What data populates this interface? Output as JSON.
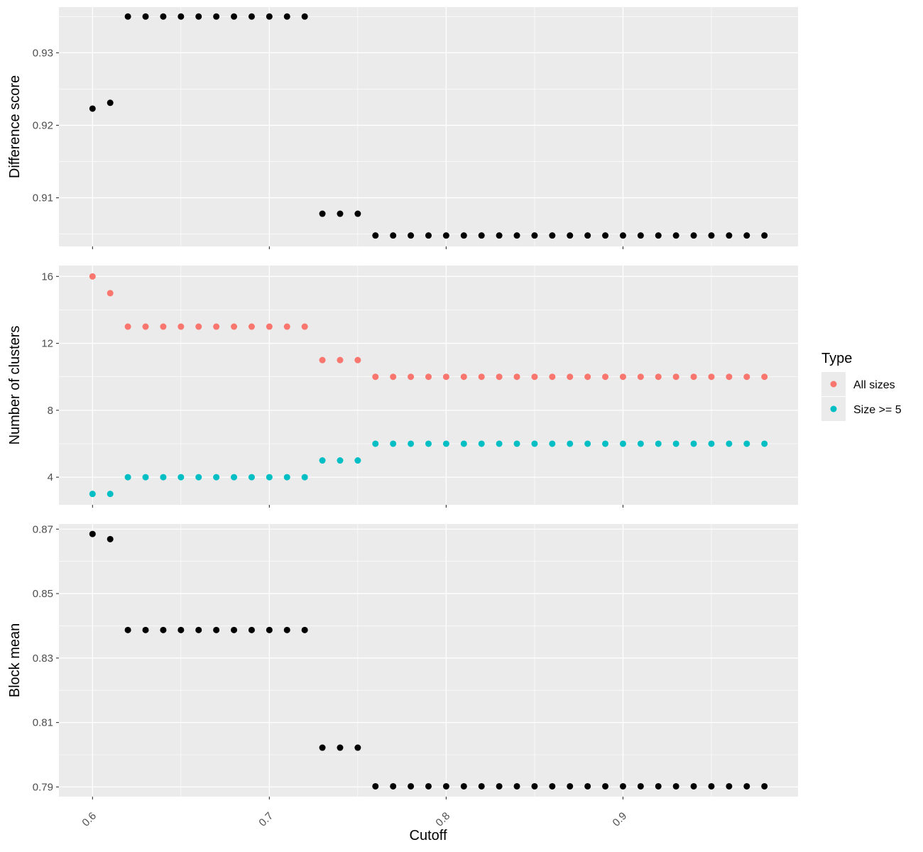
{
  "chart_data": {
    "type": "scatter",
    "xlabel": "Cutoff",
    "x_ticks": [
      0.6,
      0.7,
      0.8,
      0.9
    ],
    "x_tick_labels": [
      "0.6",
      "0.7",
      "0.8",
      "0.9"
    ],
    "xlim": [
      0.581,
      0.999
    ],
    "cutoffs": [
      0.6,
      0.61,
      0.62,
      0.63,
      0.64,
      0.65,
      0.66,
      0.67,
      0.68,
      0.69,
      0.7,
      0.71,
      0.72,
      0.73,
      0.74,
      0.75,
      0.76,
      0.77,
      0.78,
      0.79,
      0.8,
      0.81,
      0.82,
      0.83,
      0.84,
      0.85,
      0.86,
      0.87,
      0.88,
      0.89,
      0.9,
      0.91,
      0.92,
      0.93,
      0.94,
      0.95,
      0.96,
      0.97,
      0.98
    ],
    "legend": {
      "title": "Type",
      "position": "right",
      "entries": [
        {
          "label": "All sizes",
          "color": "#F8766D"
        },
        {
          "label": "Size >= 5",
          "color": "#00BFC4"
        }
      ]
    },
    "panels": [
      {
        "ylabel": "Difference score",
        "ylim": [
          0.9033,
          0.9363
        ],
        "y_ticks": [
          0.91,
          0.92,
          0.93
        ],
        "y_tick_labels": [
          "0.91",
          "0.92",
          "0.93"
        ],
        "series": [
          {
            "color": "#000000",
            "values": [
              0.9223,
              0.9231,
              0.935,
              0.935,
              0.935,
              0.935,
              0.935,
              0.935,
              0.935,
              0.935,
              0.935,
              0.935,
              0.935,
              0.9078,
              0.9078,
              0.9078,
              0.9048,
              0.9048,
              0.9048,
              0.9048,
              0.9048,
              0.9048,
              0.9048,
              0.9048,
              0.9048,
              0.9048,
              0.9048,
              0.9048,
              0.9048,
              0.9048,
              0.9048,
              0.9048,
              0.9048,
              0.9048,
              0.9048,
              0.9048,
              0.9048,
              0.9048,
              0.9048
            ]
          }
        ]
      },
      {
        "ylabel": "Number of clusters",
        "ylim": [
          2.35,
          16.65
        ],
        "y_ticks": [
          4,
          8,
          12,
          16
        ],
        "y_tick_labels": [
          "4",
          "8",
          "12",
          "16"
        ],
        "series": [
          {
            "name": "All sizes",
            "color": "#F8766D",
            "values": [
              16,
              15,
              13,
              13,
              13,
              13,
              13,
              13,
              13,
              13,
              13,
              13,
              13,
              11,
              11,
              11,
              10,
              10,
              10,
              10,
              10,
              10,
              10,
              10,
              10,
              10,
              10,
              10,
              10,
              10,
              10,
              10,
              10,
              10,
              10,
              10,
              10,
              10,
              10
            ]
          },
          {
            "name": "Size >= 5",
            "color": "#00BFC4",
            "values": [
              3,
              3,
              4,
              4,
              4,
              4,
              4,
              4,
              4,
              4,
              4,
              4,
              4,
              5,
              5,
              5,
              6,
              6,
              6,
              6,
              6,
              6,
              6,
              6,
              6,
              6,
              6,
              6,
              6,
              6,
              6,
              6,
              6,
              6,
              6,
              6,
              6,
              6,
              6
            ]
          }
        ]
      },
      {
        "ylabel": "Block mean",
        "ylim": [
          0.787,
          0.8716
        ],
        "y_ticks": [
          0.79,
          0.81,
          0.83,
          0.85,
          0.87
        ],
        "y_tick_labels": [
          "0.79",
          "0.81",
          "0.83",
          "0.85",
          "0.87"
        ],
        "series": [
          {
            "color": "#000000",
            "values": [
              0.8685,
              0.8669,
              0.8387,
              0.8387,
              0.8387,
              0.8387,
              0.8387,
              0.8387,
              0.8387,
              0.8387,
              0.8387,
              0.8387,
              0.8387,
              0.8022,
              0.8022,
              0.8022,
              0.7902,
              0.7902,
              0.7902,
              0.7902,
              0.7902,
              0.7902,
              0.7902,
              0.7902,
              0.7902,
              0.7902,
              0.7902,
              0.7902,
              0.7902,
              0.7902,
              0.7902,
              0.7902,
              0.7902,
              0.7902,
              0.7902,
              0.7902,
              0.7902,
              0.7902,
              0.7902
            ]
          }
        ]
      }
    ]
  }
}
